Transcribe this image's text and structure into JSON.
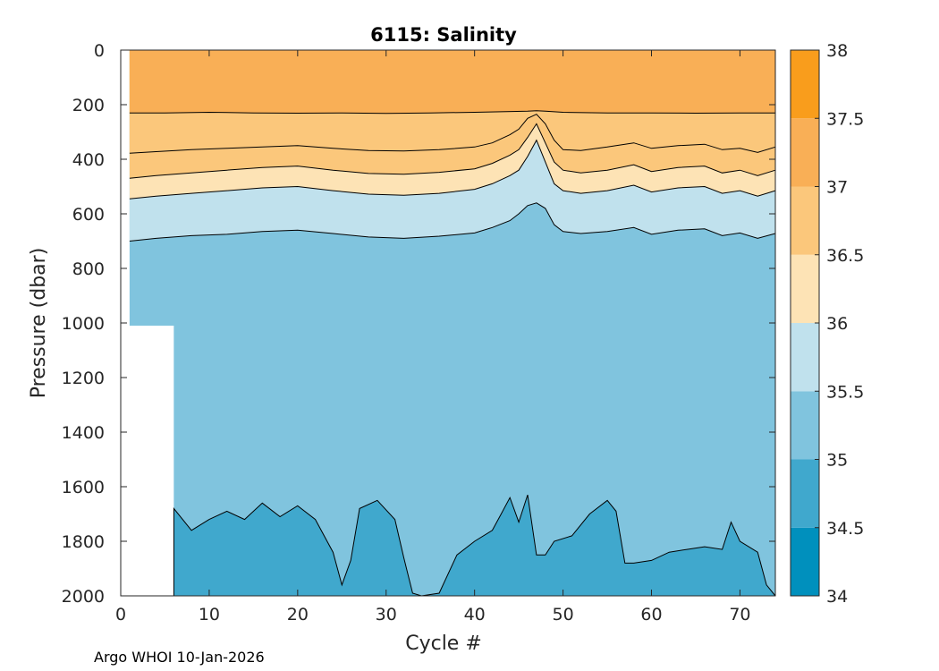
{
  "chart_data": {
    "type": "contour",
    "title": "6115:  Salinity",
    "xlabel": "Cycle #",
    "ylabel": "Pressure (dbar)",
    "xlim": [
      0,
      74
    ],
    "ylim": [
      0,
      2000
    ],
    "x_ticks": [
      0,
      10,
      20,
      30,
      40,
      50,
      60,
      70
    ],
    "y_ticks": [
      0,
      200,
      400,
      600,
      800,
      1000,
      1200,
      1400,
      1600,
      1800,
      2000
    ],
    "colorbar": {
      "levels": [
        34,
        34.5,
        35,
        35.5,
        36,
        36.5,
        37,
        37.5,
        38
      ],
      "tick_labels": [
        "34",
        "34.5",
        "35",
        "35.5",
        "36",
        "36.5",
        "37",
        "37.5",
        "38"
      ],
      "colors": [
        "#0090bd",
        "#40a8cd",
        "#80c4de",
        "#c0e1ed",
        "#fde3b5",
        "#fbc77b",
        "#f9af56",
        "#f99d1c"
      ]
    },
    "data_start_cycle": 1,
    "deep_start_cycle": 6,
    "shallow_max_pressure": 1010,
    "contours": [
      {
        "level": 37.0,
        "pressure": [
          [
            1,
            230
          ],
          [
            5,
            230
          ],
          [
            10,
            228
          ],
          [
            15,
            230
          ],
          [
            20,
            231
          ],
          [
            25,
            230
          ],
          [
            30,
            232
          ],
          [
            35,
            230
          ],
          [
            40,
            228
          ],
          [
            43,
            226
          ],
          [
            46,
            224
          ],
          [
            47,
            222
          ],
          [
            48,
            224
          ],
          [
            50,
            228
          ],
          [
            55,
            230
          ],
          [
            60,
            230
          ],
          [
            65,
            231
          ],
          [
            70,
            230
          ],
          [
            74,
            230
          ]
        ]
      },
      {
        "level": 36.5,
        "pressure": [
          [
            1,
            378
          ],
          [
            4,
            372
          ],
          [
            8,
            365
          ],
          [
            12,
            360
          ],
          [
            16,
            355
          ],
          [
            20,
            350
          ],
          [
            24,
            360
          ],
          [
            28,
            368
          ],
          [
            32,
            370
          ],
          [
            36,
            365
          ],
          [
            40,
            355
          ],
          [
            42,
            340
          ],
          [
            44,
            310
          ],
          [
            45,
            290
          ],
          [
            46,
            250
          ],
          [
            47,
            235
          ],
          [
            48,
            270
          ],
          [
            49,
            330
          ],
          [
            50,
            365
          ],
          [
            52,
            368
          ],
          [
            55,
            355
          ],
          [
            58,
            340
          ],
          [
            60,
            360
          ],
          [
            63,
            350
          ],
          [
            66,
            345
          ],
          [
            68,
            365
          ],
          [
            70,
            360
          ],
          [
            72,
            375
          ],
          [
            74,
            355
          ]
        ]
      },
      {
        "level": 36.0,
        "pressure": [
          [
            1,
            470
          ],
          [
            4,
            460
          ],
          [
            8,
            450
          ],
          [
            12,
            440
          ],
          [
            16,
            430
          ],
          [
            20,
            425
          ],
          [
            24,
            440
          ],
          [
            28,
            452
          ],
          [
            32,
            455
          ],
          [
            36,
            448
          ],
          [
            40,
            435
          ],
          [
            42,
            415
          ],
          [
            44,
            385
          ],
          [
            45,
            365
          ],
          [
            46,
            320
          ],
          [
            47,
            270
          ],
          [
            48,
            340
          ],
          [
            49,
            410
          ],
          [
            50,
            440
          ],
          [
            52,
            450
          ],
          [
            55,
            440
          ],
          [
            58,
            420
          ],
          [
            60,
            445
          ],
          [
            63,
            430
          ],
          [
            66,
            425
          ],
          [
            68,
            450
          ],
          [
            70,
            440
          ],
          [
            72,
            460
          ],
          [
            74,
            440
          ]
        ]
      },
      {
        "level": 35.5,
        "pressure": [
          [
            1,
            545
          ],
          [
            4,
            535
          ],
          [
            8,
            525
          ],
          [
            12,
            515
          ],
          [
            16,
            505
          ],
          [
            20,
            500
          ],
          [
            24,
            515
          ],
          [
            28,
            528
          ],
          [
            32,
            532
          ],
          [
            36,
            525
          ],
          [
            40,
            510
          ],
          [
            42,
            490
          ],
          [
            44,
            460
          ],
          [
            45,
            440
          ],
          [
            46,
            390
          ],
          [
            47,
            330
          ],
          [
            48,
            410
          ],
          [
            49,
            490
          ],
          [
            50,
            515
          ],
          [
            52,
            525
          ],
          [
            55,
            515
          ],
          [
            58,
            495
          ],
          [
            60,
            520
          ],
          [
            63,
            505
          ],
          [
            66,
            500
          ],
          [
            68,
            525
          ],
          [
            70,
            515
          ],
          [
            72,
            535
          ],
          [
            74,
            515
          ]
        ]
      },
      {
        "level": 35.0,
        "pressure": [
          [
            1,
            700
          ],
          [
            4,
            690
          ],
          [
            8,
            680
          ],
          [
            12,
            675
          ],
          [
            16,
            665
          ],
          [
            20,
            660
          ],
          [
            24,
            672
          ],
          [
            28,
            685
          ],
          [
            32,
            690
          ],
          [
            36,
            682
          ],
          [
            40,
            670
          ],
          [
            42,
            650
          ],
          [
            44,
            625
          ],
          [
            45,
            600
          ],
          [
            46,
            570
          ],
          [
            47,
            560
          ],
          [
            48,
            580
          ],
          [
            49,
            640
          ],
          [
            50,
            665
          ],
          [
            52,
            672
          ],
          [
            55,
            665
          ],
          [
            58,
            650
          ],
          [
            60,
            675
          ],
          [
            63,
            660
          ],
          [
            66,
            655
          ],
          [
            68,
            680
          ],
          [
            70,
            670
          ],
          [
            72,
            690
          ],
          [
            74,
            672
          ]
        ]
      },
      {
        "level": 34.5,
        "pressure": [
          [
            6,
            2000
          ],
          [
            6,
            1680
          ],
          [
            8,
            1760
          ],
          [
            10,
            1720
          ],
          [
            12,
            1690
          ],
          [
            14,
            1720
          ],
          [
            16,
            1660
          ],
          [
            18,
            1710
          ],
          [
            20,
            1670
          ],
          [
            22,
            1720
          ],
          [
            24,
            1840
          ],
          [
            25,
            1960
          ],
          [
            26,
            1870
          ],
          [
            27,
            1680
          ],
          [
            29,
            1650
          ],
          [
            31,
            1720
          ],
          [
            32,
            1860
          ],
          [
            33,
            1990
          ],
          [
            34,
            2000
          ],
          [
            36,
            1990
          ],
          [
            38,
            1850
          ],
          [
            40,
            1800
          ],
          [
            42,
            1760
          ],
          [
            43,
            1700
          ],
          [
            44,
            1640
          ],
          [
            45,
            1730
          ],
          [
            46,
            1630
          ],
          [
            47,
            1850
          ],
          [
            48,
            1850
          ],
          [
            49,
            1800
          ],
          [
            51,
            1780
          ],
          [
            53,
            1700
          ],
          [
            55,
            1650
          ],
          [
            56,
            1690
          ],
          [
            57,
            1880
          ],
          [
            58,
            1880
          ],
          [
            60,
            1870
          ],
          [
            62,
            1840
          ],
          [
            64,
            1830
          ],
          [
            66,
            1820
          ],
          [
            68,
            1830
          ],
          [
            69,
            1730
          ],
          [
            70,
            1800
          ],
          [
            72,
            1840
          ],
          [
            73,
            1960
          ],
          [
            74,
            2000
          ]
        ]
      }
    ]
  },
  "footer": "Argo WHOI 10-Jan-2026"
}
